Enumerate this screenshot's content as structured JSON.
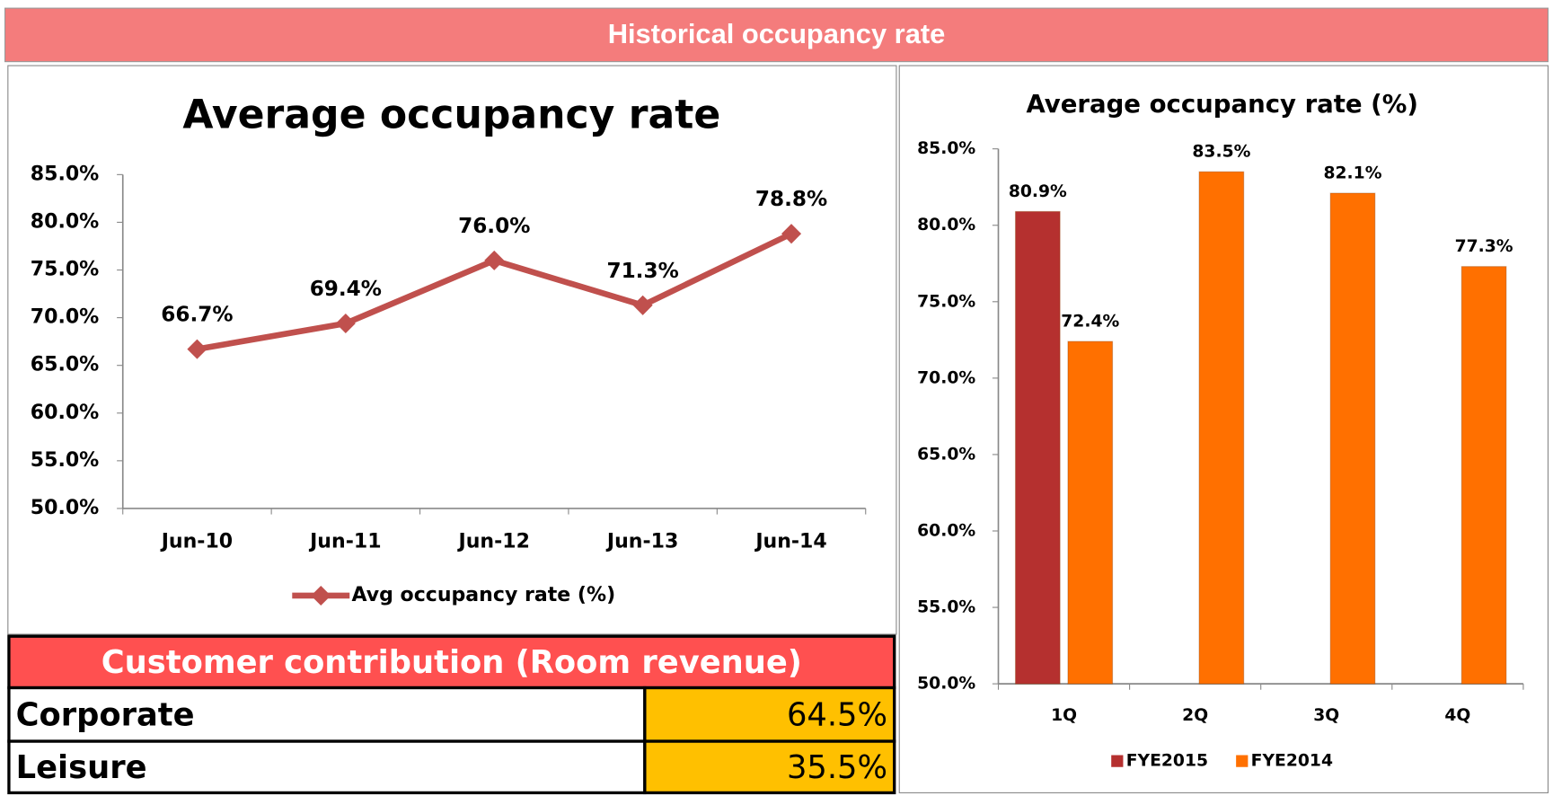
{
  "header": {
    "title": "Historical occupancy rate"
  },
  "chart_data": [
    {
      "type": "line",
      "title": "Average occupancy rate",
      "categories": [
        "Jun-10",
        "Jun-11",
        "Jun-12",
        "Jun-13",
        "Jun-14"
      ],
      "series": [
        {
          "name": "Avg occupancy rate (%)",
          "color": "#c0504d",
          "values": [
            66.7,
            69.4,
            76.0,
            71.3,
            78.8
          ],
          "value_labels": [
            "66.7%",
            "69.4%",
            "76.0%",
            "71.3%",
            "78.8%"
          ]
        }
      ],
      "ylim": [
        50,
        85
      ],
      "yticks": [
        {
          "value": 50,
          "label": "50.0%"
        },
        {
          "value": 55,
          "label": "55.0%"
        },
        {
          "value": 60,
          "label": "60.0%"
        },
        {
          "value": 65,
          "label": "65.0%"
        },
        {
          "value": 70,
          "label": "70.0%"
        },
        {
          "value": 75,
          "label": "75.0%"
        },
        {
          "value": 80,
          "label": "80.0%"
        },
        {
          "value": 85,
          "label": "85.0%"
        }
      ],
      "grid": false,
      "legend": "bottom"
    },
    {
      "type": "bar",
      "title": "Average occupancy rate (%)",
      "categories": [
        "1Q",
        "2Q",
        "3Q",
        "4Q"
      ],
      "series": [
        {
          "name": "FYE2015",
          "color": "#b5302f",
          "values": [
            80.9,
            null,
            null,
            null
          ],
          "value_labels": [
            "80.9%",
            null,
            null,
            null
          ]
        },
        {
          "name": "FYE2014",
          "color": "#ff7000",
          "values": [
            72.4,
            83.5,
            82.1,
            77.3
          ],
          "value_labels": [
            "72.4%",
            "83.5%",
            "82.1%",
            "77.3%"
          ]
        }
      ],
      "ylim": [
        50,
        85
      ],
      "yticks": [
        {
          "value": 50,
          "label": "50.0%"
        },
        {
          "value": 55,
          "label": "55.0%"
        },
        {
          "value": 60,
          "label": "60.0%"
        },
        {
          "value": 65,
          "label": "65.0%"
        },
        {
          "value": 70,
          "label": "70.0%"
        },
        {
          "value": 75,
          "label": "75.0%"
        },
        {
          "value": 80,
          "label": "80.0%"
        },
        {
          "value": 85,
          "label": "85.0%"
        }
      ],
      "grid": false,
      "legend": "bottom"
    }
  ],
  "table": {
    "title": "Customer contribution (Room revenue)",
    "rows": [
      [
        "Corporate",
        "64.5%"
      ],
      [
        "Leisure",
        "35.5%"
      ]
    ]
  }
}
